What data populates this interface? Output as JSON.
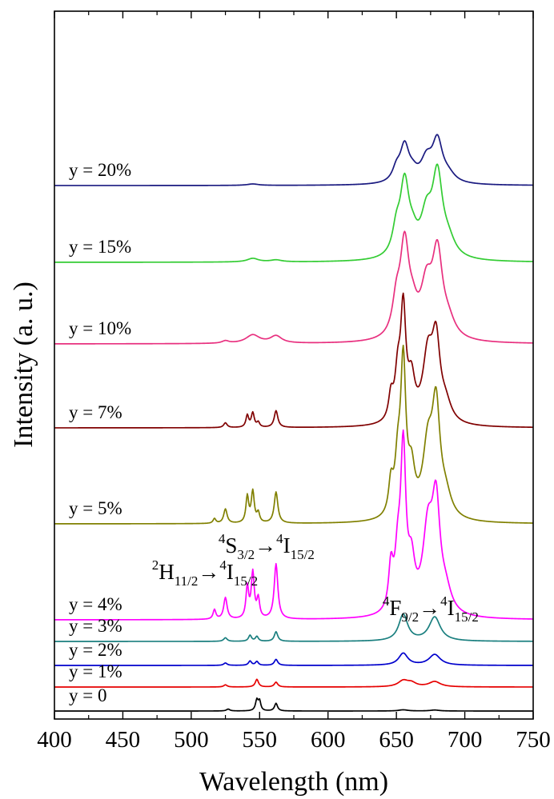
{
  "chart_data": {
    "type": "line",
    "xlabel": "Wavelength (nm)",
    "ylabel": "Intensity (a. u.)",
    "xlim": [
      400,
      750
    ],
    "x_ticks": [
      400,
      450,
      500,
      550,
      600,
      650,
      700,
      750
    ],
    "x_tick_labels": [
      "400",
      "450",
      "500",
      "550",
      "600",
      "650",
      "700",
      "750"
    ],
    "y_ticks_shown": false,
    "y_unit": "arbitrary units (curves vertically offset)",
    "grid": false,
    "legend": "none (curve labels printed on the left)",
    "series": [
      {
        "name": "y = 0",
        "color": "#000000",
        "baseline": 0,
        "peaks": [
          [
            527,
            0.8,
            1.5
          ],
          [
            548,
            4.6,
            1.2
          ],
          [
            550,
            3.8,
            1.0
          ],
          [
            562,
            3.2,
            1.3
          ],
          [
            655,
            0.5,
            4
          ],
          [
            678,
            0.4,
            4
          ]
        ]
      },
      {
        "name": "y = 1%",
        "color": "#e60000",
        "baseline": 10,
        "peaks": [
          [
            525,
            0.9,
            1.5
          ],
          [
            548,
            3.2,
            1.4
          ],
          [
            562,
            2.0,
            1.5
          ],
          [
            655,
            2.5,
            4.5
          ],
          [
            661,
            1.5,
            4
          ],
          [
            678,
            2.2,
            5
          ]
        ]
      },
      {
        "name": "y = 2%",
        "color": "#0000cc",
        "baseline": 19,
        "peaks": [
          [
            525,
            1.0,
            1.5
          ],
          [
            543,
            1.8,
            1.3
          ],
          [
            548,
            1.6,
            1.3
          ],
          [
            562,
            2.5,
            1.5
          ],
          [
            655,
            5.0,
            4
          ],
          [
            678,
            4.5,
            5
          ]
        ]
      },
      {
        "name": "y = 3%",
        "color": "#1a7f7f",
        "baseline": 29,
        "peaks": [
          [
            525,
            1.5,
            1.5
          ],
          [
            543,
            2.5,
            1.3
          ],
          [
            548,
            2.0,
            1.3
          ],
          [
            562,
            4.0,
            1.5
          ],
          [
            655,
            11,
            4
          ],
          [
            678,
            10,
            5
          ]
        ]
      },
      {
        "name": "y = 4%",
        "color": "#ff00ff",
        "baseline": 38,
        "peaks": [
          [
            517,
            4,
            1.2
          ],
          [
            525,
            9,
            1.5
          ],
          [
            541,
            13,
            1.2
          ],
          [
            545,
            19,
            1.3
          ],
          [
            549,
            8,
            1.2
          ],
          [
            562,
            23,
            1.6
          ],
          [
            646,
            18,
            2
          ],
          [
            651,
            20,
            2.5
          ],
          [
            655,
            66,
            2.3
          ],
          [
            661,
            18,
            3
          ],
          [
            673,
            33,
            4.5
          ],
          [
            679,
            42,
            3.5
          ],
          [
            686,
            8,
            5
          ]
        ]
      },
      {
        "name": "y = 5%",
        "color": "#808000",
        "baseline": 78,
        "peaks": [
          [
            517,
            2,
            1.2
          ],
          [
            525,
            6,
            1.5
          ],
          [
            541,
            11,
            1.2
          ],
          [
            545,
            13,
            1.3
          ],
          [
            549,
            4,
            1.2
          ],
          [
            562,
            13,
            1.6
          ],
          [
            646,
            13,
            2
          ],
          [
            651,
            20,
            2.5
          ],
          [
            655,
            62,
            2.3
          ],
          [
            661,
            17,
            3
          ],
          [
            673,
            28,
            4.5
          ],
          [
            679,
            43,
            3.5
          ],
          [
            686,
            8,
            5
          ]
        ]
      },
      {
        "name": "y = 7%",
        "color": "#800000",
        "baseline": 118,
        "peaks": [
          [
            525,
            2,
            1.5
          ],
          [
            541,
            5,
            1.2
          ],
          [
            545,
            6,
            1.3
          ],
          [
            549,
            2,
            1.2
          ],
          [
            562,
            7,
            1.6
          ],
          [
            646,
            10,
            2
          ],
          [
            651,
            18,
            2.5
          ],
          [
            655,
            45,
            2.3
          ],
          [
            661,
            16,
            3
          ],
          [
            673,
            27,
            4.5
          ],
          [
            679,
            31,
            3.5
          ],
          [
            686,
            7,
            5
          ]
        ]
      },
      {
        "name": "y = 10%",
        "color": "#e8307f",
        "baseline": 153,
        "peaks": [
          [
            525,
            1.0,
            3
          ],
          [
            545,
            3.5,
            6
          ],
          [
            562,
            3.0,
            5
          ],
          [
            650,
            13,
            3.5
          ],
          [
            656,
            38,
            4
          ],
          [
            662,
            8,
            4
          ],
          [
            672,
            20,
            5
          ],
          [
            680,
            34,
            4.5
          ],
          [
            688,
            6,
            6
          ]
        ]
      },
      {
        "name": "y = 15%",
        "color": "#33cc33",
        "baseline": 187,
        "peaks": [
          [
            545,
            1.5,
            5
          ],
          [
            562,
            0.8,
            5
          ],
          [
            650,
            10,
            3.5
          ],
          [
            656,
            30,
            4
          ],
          [
            662,
            6,
            4
          ],
          [
            672,
            16,
            5
          ],
          [
            680,
            33,
            4.5
          ],
          [
            688,
            6,
            6
          ]
        ]
      },
      {
        "name": "y = 20%",
        "color": "#1a1a80",
        "baseline": 219,
        "peaks": [
          [
            545,
            0.6,
            5
          ],
          [
            650,
            5,
            3.5
          ],
          [
            656,
            15,
            4
          ],
          [
            662,
            3,
            4
          ],
          [
            672,
            9,
            5
          ],
          [
            680,
            17,
            4.5
          ],
          [
            688,
            3,
            6
          ]
        ]
      }
    ],
    "annotations": [
      {
        "base": "H",
        "pre_sup": "2",
        "sub": "11/2",
        "arrow": "→",
        "target_pre_sup": "4",
        "target": "I",
        "target_sub": "15/2",
        "x": 510,
        "y": 55
      },
      {
        "base": "S",
        "pre_sup": "4",
        "sub": "3/2",
        "arrow": "→",
        "target_pre_sup": "4",
        "target": "I",
        "target_sub": "15/2",
        "x": 555,
        "y": 66
      },
      {
        "base": "F",
        "pre_sup": "4",
        "sub": "9/2",
        "arrow": "→",
        "target_pre_sup": "4",
        "target": "I",
        "target_sub": "15/2",
        "x": 675,
        "y": 40
      }
    ]
  }
}
